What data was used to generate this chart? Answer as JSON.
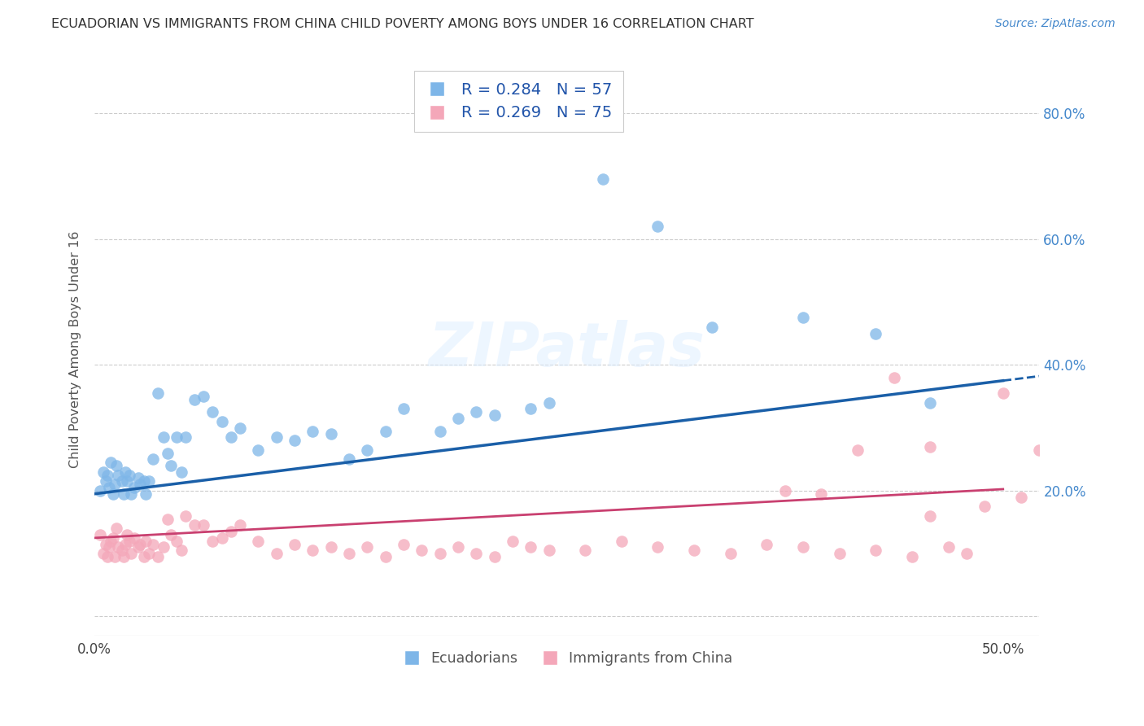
{
  "title": "ECUADORIAN VS IMMIGRANTS FROM CHINA CHILD POVERTY AMONG BOYS UNDER 16 CORRELATION CHART",
  "source": "Source: ZipAtlas.com",
  "ylabel": "Child Poverty Among Boys Under 16",
  "xlim": [
    0.0,
    0.52
  ],
  "ylim": [
    -0.03,
    0.88
  ],
  "xtick_positions": [
    0.0,
    0.1,
    0.2,
    0.3,
    0.4,
    0.5
  ],
  "xtick_labels": [
    "0.0%",
    "",
    "",
    "",
    "",
    "50.0%"
  ],
  "ytick_positions": [
    0.0,
    0.2,
    0.4,
    0.6,
    0.8
  ],
  "ytick_labels_right": [
    "",
    "20.0%",
    "40.0%",
    "60.0%",
    "80.0%"
  ],
  "grid_color": "#cccccc",
  "background_color": "#ffffff",
  "blue_color": "#7eb6e8",
  "blue_line_color": "#1a5fa8",
  "pink_color": "#f4a7b9",
  "pink_line_color": "#c94070",
  "R_blue": 0.284,
  "N_blue": 57,
  "R_pink": 0.269,
  "N_pink": 75,
  "legend_label_blue": "Ecuadorians",
  "legend_label_pink": "Immigrants from China",
  "watermark": "ZIPatlas",
  "blue_intercept": 0.195,
  "blue_slope": 0.36,
  "pink_intercept": 0.125,
  "pink_slope": 0.155,
  "blue_points_x": [
    0.003,
    0.005,
    0.006,
    0.007,
    0.008,
    0.009,
    0.01,
    0.011,
    0.012,
    0.013,
    0.015,
    0.016,
    0.017,
    0.018,
    0.019,
    0.02,
    0.022,
    0.024,
    0.025,
    0.027,
    0.028,
    0.03,
    0.032,
    0.035,
    0.038,
    0.04,
    0.042,
    0.045,
    0.048,
    0.05,
    0.055,
    0.06,
    0.065,
    0.07,
    0.075,
    0.08,
    0.09,
    0.1,
    0.11,
    0.12,
    0.13,
    0.14,
    0.15,
    0.16,
    0.17,
    0.19,
    0.2,
    0.21,
    0.22,
    0.24,
    0.25,
    0.28,
    0.31,
    0.34,
    0.39,
    0.43,
    0.46
  ],
  "blue_points_y": [
    0.2,
    0.23,
    0.215,
    0.225,
    0.205,
    0.245,
    0.195,
    0.21,
    0.24,
    0.225,
    0.215,
    0.195,
    0.23,
    0.215,
    0.225,
    0.195,
    0.205,
    0.22,
    0.21,
    0.215,
    0.195,
    0.215,
    0.25,
    0.355,
    0.285,
    0.26,
    0.24,
    0.285,
    0.23,
    0.285,
    0.345,
    0.35,
    0.325,
    0.31,
    0.285,
    0.3,
    0.265,
    0.285,
    0.28,
    0.295,
    0.29,
    0.25,
    0.265,
    0.295,
    0.33,
    0.295,
    0.315,
    0.325,
    0.32,
    0.33,
    0.34,
    0.695,
    0.62,
    0.46,
    0.475,
    0.45,
    0.34
  ],
  "pink_points_x": [
    0.003,
    0.005,
    0.006,
    0.007,
    0.008,
    0.009,
    0.01,
    0.011,
    0.012,
    0.013,
    0.015,
    0.016,
    0.017,
    0.018,
    0.019,
    0.02,
    0.022,
    0.024,
    0.025,
    0.027,
    0.028,
    0.03,
    0.032,
    0.035,
    0.038,
    0.04,
    0.042,
    0.045,
    0.048,
    0.05,
    0.055,
    0.06,
    0.065,
    0.07,
    0.075,
    0.08,
    0.09,
    0.1,
    0.11,
    0.12,
    0.13,
    0.14,
    0.15,
    0.16,
    0.17,
    0.18,
    0.19,
    0.2,
    0.21,
    0.22,
    0.23,
    0.24,
    0.25,
    0.27,
    0.29,
    0.31,
    0.33,
    0.35,
    0.37,
    0.39,
    0.41,
    0.43,
    0.45,
    0.46,
    0.47,
    0.48,
    0.49,
    0.5,
    0.51,
    0.52,
    0.38,
    0.4,
    0.42,
    0.44,
    0.46
  ],
  "pink_points_y": [
    0.13,
    0.1,
    0.115,
    0.095,
    0.11,
    0.12,
    0.125,
    0.095,
    0.14,
    0.11,
    0.105,
    0.095,
    0.115,
    0.13,
    0.12,
    0.1,
    0.125,
    0.11,
    0.115,
    0.095,
    0.12,
    0.1,
    0.115,
    0.095,
    0.11,
    0.155,
    0.13,
    0.12,
    0.105,
    0.16,
    0.145,
    0.145,
    0.12,
    0.125,
    0.135,
    0.145,
    0.12,
    0.1,
    0.115,
    0.105,
    0.11,
    0.1,
    0.11,
    0.095,
    0.115,
    0.105,
    0.1,
    0.11,
    0.1,
    0.095,
    0.12,
    0.11,
    0.105,
    0.105,
    0.12,
    0.11,
    0.105,
    0.1,
    0.115,
    0.11,
    0.1,
    0.105,
    0.095,
    0.16,
    0.11,
    0.1,
    0.175,
    0.355,
    0.19,
    0.265,
    0.2,
    0.195,
    0.265,
    0.38,
    0.27
  ]
}
